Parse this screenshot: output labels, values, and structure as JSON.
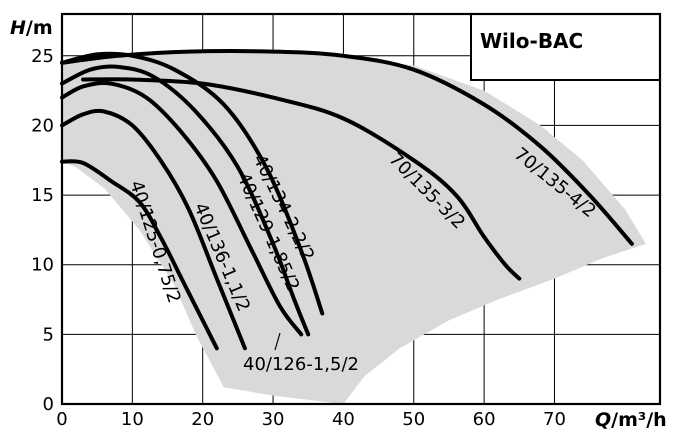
{
  "chart_data": {
    "type": "line",
    "title": "Wilo-BAC",
    "x_axis": {
      "label": "Q",
      "unit": "/m³/h",
      "range": [
        0,
        85
      ],
      "ticks": [
        0,
        10,
        20,
        30,
        40,
        50,
        60,
        70
      ]
    },
    "y_axis": {
      "label": "H",
      "unit": "/m",
      "range": [
        0,
        28
      ],
      "ticks": [
        0,
        5,
        10,
        15,
        20,
        25
      ]
    },
    "grid": true,
    "envelope": [
      [
        0,
        24.5
      ],
      [
        5,
        25
      ],
      [
        10,
        25.2
      ],
      [
        20,
        25.4
      ],
      [
        30,
        25.3
      ],
      [
        40,
        25
      ],
      [
        50,
        24.3
      ],
      [
        60,
        22.5
      ],
      [
        68,
        20
      ],
      [
        74,
        17.5
      ],
      [
        80,
        14
      ],
      [
        83,
        11.5
      ],
      [
        77,
        10.5
      ],
      [
        70,
        9
      ],
      [
        62,
        7.5
      ],
      [
        55,
        6
      ],
      [
        48,
        4
      ],
      [
        43,
        2
      ],
      [
        40,
        0
      ],
      [
        30,
        0.6
      ],
      [
        23,
        1.2
      ],
      [
        19,
        5
      ],
      [
        16,
        8.5
      ],
      [
        11,
        12.5
      ],
      [
        6,
        15.5
      ],
      [
        2,
        17
      ],
      [
        0,
        17.4
      ]
    ],
    "series": [
      {
        "name": "40/125-0,75/2",
        "points": [
          [
            0,
            17.4
          ],
          [
            3,
            17.3
          ],
          [
            7,
            16
          ],
          [
            11,
            14.5
          ],
          [
            14,
            12
          ],
          [
            17,
            9
          ],
          [
            20,
            6
          ],
          [
            22,
            4
          ]
        ]
      },
      {
        "name": "40/136-1,1/2",
        "points": [
          [
            0,
            20
          ],
          [
            3,
            20.8
          ],
          [
            6,
            21
          ],
          [
            10,
            20
          ],
          [
            14,
            17.5
          ],
          [
            18,
            14
          ],
          [
            22,
            9
          ],
          [
            26,
            4
          ]
        ]
      },
      {
        "name": "40/126-1,5/2",
        "points": [
          [
            0,
            22
          ],
          [
            3,
            22.8
          ],
          [
            7,
            23
          ],
          [
            12,
            22
          ],
          [
            17,
            19.5
          ],
          [
            22,
            16
          ],
          [
            27,
            11
          ],
          [
            31,
            7
          ],
          [
            34,
            5
          ]
        ]
      },
      {
        "name": "40/129-1,85/2",
        "points": [
          [
            0,
            23
          ],
          [
            4,
            24
          ],
          [
            8,
            24.2
          ],
          [
            13,
            23.5
          ],
          [
            19,
            21
          ],
          [
            25,
            17
          ],
          [
            30,
            11.5
          ],
          [
            33,
            7.5
          ],
          [
            35,
            5
          ]
        ]
      },
      {
        "name": "40/134-2,2/2",
        "points": [
          [
            0,
            24.5
          ],
          [
            5,
            25.1
          ],
          [
            10,
            25
          ],
          [
            16,
            24
          ],
          [
            23,
            21.5
          ],
          [
            29,
            17
          ],
          [
            34,
            11
          ],
          [
            37,
            6.5
          ]
        ]
      },
      {
        "name": "70/135-3/2",
        "points": [
          [
            3,
            23.3
          ],
          [
            10,
            23.3
          ],
          [
            20,
            23
          ],
          [
            30,
            22
          ],
          [
            40,
            20.5
          ],
          [
            50,
            17.5
          ],
          [
            56,
            15
          ],
          [
            60,
            12
          ],
          [
            63,
            10
          ],
          [
            65,
            9
          ]
        ]
      },
      {
        "name": "70/135-4/2",
        "points": [
          [
            0,
            24.5
          ],
          [
            8,
            25
          ],
          [
            18,
            25.3
          ],
          [
            30,
            25.3
          ],
          [
            40,
            25
          ],
          [
            50,
            24
          ],
          [
            60,
            21.5
          ],
          [
            68,
            18.5
          ],
          [
            75,
            15
          ],
          [
            81,
            11.5
          ]
        ]
      }
    ],
    "curve_labels": [
      "40/125-0,75/2",
      "40/136-1,1/2",
      "40/126-1,5/2",
      "40/129-1,85/2",
      "40/134-2,2/2",
      "70/135-3/2",
      "70/135-4/2"
    ]
  }
}
